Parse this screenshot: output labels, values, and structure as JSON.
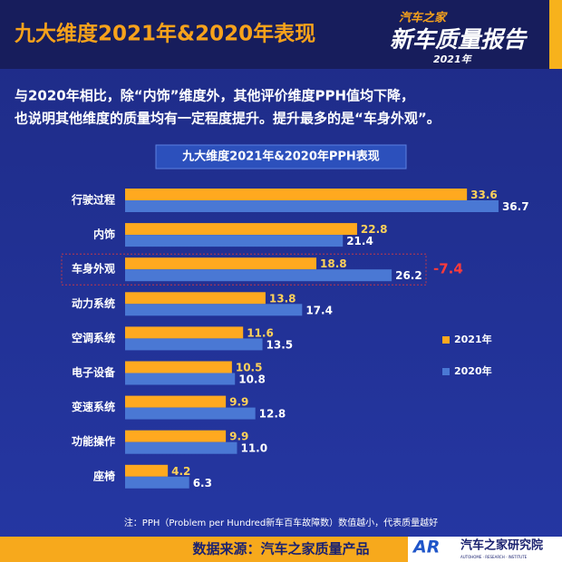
{
  "header": {
    "title": "九大维度2021年&2020年表现",
    "logo": {
      "brand": "汽车之家",
      "name": "新车质量报告",
      "year": "2021年"
    }
  },
  "subtitle": [
    "与2020年相比，除“内饰”维度外，其他评价维度PPH值均下降，",
    "也说明其他维度的质量均有一定程度提升。提升最多的是“车身外观”。"
  ],
  "chart_data": {
    "type": "hbar",
    "title": "九大维度2021年&2020年PPH表现",
    "categories": [
      "行驶过程",
      "内饰",
      "车身外观",
      "动力系统",
      "空调系统",
      "电子设备",
      "变速系统",
      "功能操作",
      "座椅"
    ],
    "series": [
      {
        "name": "2021年",
        "color": "#ffa91f",
        "values": [
          33.6,
          22.8,
          18.8,
          13.8,
          11.6,
          10.5,
          9.9,
          9.9,
          4.2
        ]
      },
      {
        "name": "2020年",
        "color": "#4a78d4",
        "values": [
          36.7,
          21.4,
          26.2,
          17.4,
          13.5,
          10.8,
          12.8,
          11.0,
          6.3
        ],
        "value_labels": [
          "36.7",
          "21.4",
          "26.2",
          "17.4",
          "13.5",
          "10.8",
          "12.8",
          "11.0",
          "6.3"
        ]
      }
    ],
    "xlim": [
      0,
      40
    ],
    "annotation": {
      "text": "-7.4",
      "category": "车身外观"
    },
    "note": "注：PPH（Problem per Hundred新车百车故障数）数值越小，代表质量越好"
  },
  "footer": {
    "source": "数据来源：汽车之家质量产品",
    "logo_mark": "AR",
    "logo_name": "汽车之家研究院",
    "logo_sub": "AUTOHOME · RESEARCH · INSTITUTE"
  }
}
